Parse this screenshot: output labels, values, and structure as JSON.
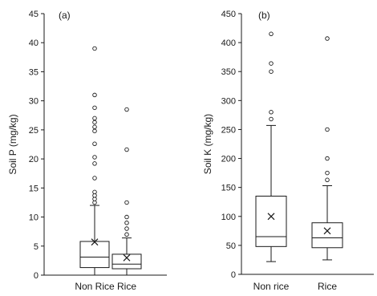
{
  "chart_data": [
    {
      "type": "boxplot",
      "panel_label": "(a)",
      "ylabel": "Soil P (mg/kg)",
      "ylim": [
        0,
        45
      ],
      "yticks": [
        0,
        5,
        10,
        15,
        20,
        25,
        30,
        35,
        40,
        45
      ],
      "categories": [
        "Non Rice",
        "Rice"
      ],
      "boxes": [
        {
          "category": "Non Rice",
          "whisker_low": 0,
          "q1": 1.3,
          "median": 3.1,
          "q3": 5.8,
          "whisker_high": 12.0,
          "mean": 5.7,
          "outliers": [
            12.5,
            13.1,
            13.7,
            14.3,
            16.7,
            19.2,
            20.3,
            22.6,
            24.8,
            25.5,
            26.3,
            27.0,
            28.8,
            31.0,
            39.0
          ]
        },
        {
          "category": "Rice",
          "whisker_low": 0,
          "q1": 1.1,
          "median": 1.9,
          "q3": 3.6,
          "whisker_high": 6.4,
          "mean": 3.0,
          "outliers": [
            7.0,
            8.0,
            9.0,
            10.0,
            12.5,
            21.6,
            28.5
          ]
        }
      ]
    },
    {
      "type": "boxplot",
      "panel_label": "(b)",
      "ylabel": "Soil K (mg/kg)",
      "ylim": [
        0,
        450
      ],
      "yticks": [
        0,
        50,
        100,
        150,
        200,
        250,
        300,
        350,
        400,
        450
      ],
      "categories": [
        "Non rice",
        "Rice"
      ],
      "boxes": [
        {
          "category": "Non rice",
          "whisker_low": 22,
          "q1": 48,
          "median": 65,
          "q3": 135,
          "whisker_high": 257,
          "mean": 100,
          "outliers": [
            268,
            280,
            350,
            364,
            415
          ]
        },
        {
          "category": "Rice",
          "whisker_low": 25,
          "q1": 46,
          "median": 63,
          "q3": 89,
          "whisker_high": 153,
          "mean": 75,
          "outliers": [
            163,
            175,
            200,
            250,
            407
          ]
        }
      ]
    }
  ]
}
